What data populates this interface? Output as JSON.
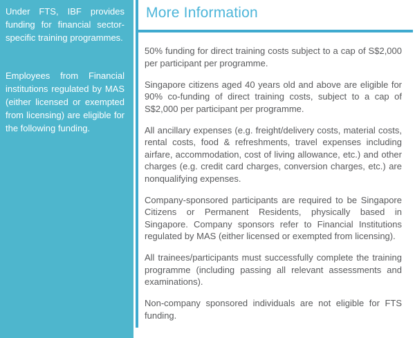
{
  "colors": {
    "sidebar_bg": "#4eb6cd",
    "sidebar_text": "#ffffff",
    "accent": "#3faacf",
    "title": "#4cb5d9",
    "body_text": "#58595b",
    "background": "#ffffff"
  },
  "sidebar": {
    "paragraphs": [
      "Under FTS, IBF provides funding for financial sector-specific training programmes.",
      "Employees from Financial institutions regulated by MAS (either licensed or exempted from licensing) are eligible for the following funding."
    ]
  },
  "main": {
    "title": "More Information",
    "paragraphs": [
      "50% funding for direct training costs subject to a cap of S$2,000 per participant per programme.",
      "Singapore citizens aged 40 years old and above are eligible for 90% co-funding of direct training costs, subject to a cap of S$2,000 per participant per programme.",
      "All ancillary expenses (e.g. freight/delivery costs, material costs, rental costs, food & refreshments, travel expenses including airfare, accommodation, cost of living allowance, etc.) and other charges (e.g. credit card charges, conversion charges, etc.) are nonqualifying expenses.",
      "Company-sponsored participants are required to be Singapore Citizens or Permanent Residents, physically based in Singapore. Company sponsors refer to Financial Institutions regulated by MAS (either licensed or exempted from licensing).",
      "All trainees/participants must successfully complete the training programme (including passing all relevant assessments and examinations).",
      "Non-company sponsored individuals are not eligible for FTS funding."
    ]
  }
}
